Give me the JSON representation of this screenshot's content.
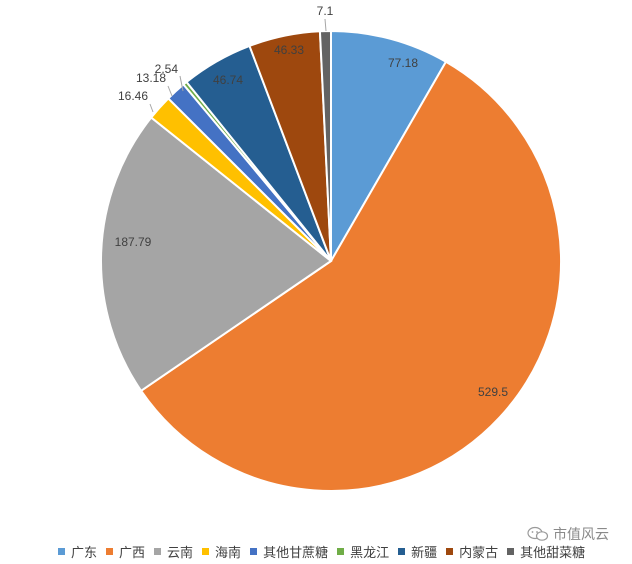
{
  "chart_data": {
    "type": "pie",
    "title": "",
    "start_angle_deg": 0,
    "series": [
      {
        "label": "广东",
        "value": 77.18,
        "data_label": "77.18",
        "color": "#5b9bd5"
      },
      {
        "label": "广西",
        "value": 529.5,
        "data_label": "529.5",
        "color": "#ed7d31"
      },
      {
        "label": "云南",
        "value": 187.79,
        "data_label": "187.79",
        "color": "#a5a5a5"
      },
      {
        "label": "海南",
        "value": 16.46,
        "data_label": "16.46",
        "color": "#ffc000"
      },
      {
        "label": "其他甘蔗糖",
        "value": 13.18,
        "data_label": "13.18",
        "color": "#4472c4"
      },
      {
        "label": "黑龙江",
        "value": 2.54,
        "data_label": "2.54",
        "color": "#70ad47"
      },
      {
        "label": "新疆",
        "value": 46.74,
        "data_label": "46.74",
        "color": "#255e91"
      },
      {
        "label": "内蒙古",
        "value": 46.33,
        "data_label": "46.33",
        "color": "#9e480e"
      },
      {
        "label": "其他甜菜糖",
        "value": 7.1,
        "data_label": "7.1",
        "color": "#636363"
      }
    ],
    "legend_position": "bottom"
  },
  "watermark": {
    "text": "市值风云",
    "icon": "wechat-bubble-icon"
  }
}
